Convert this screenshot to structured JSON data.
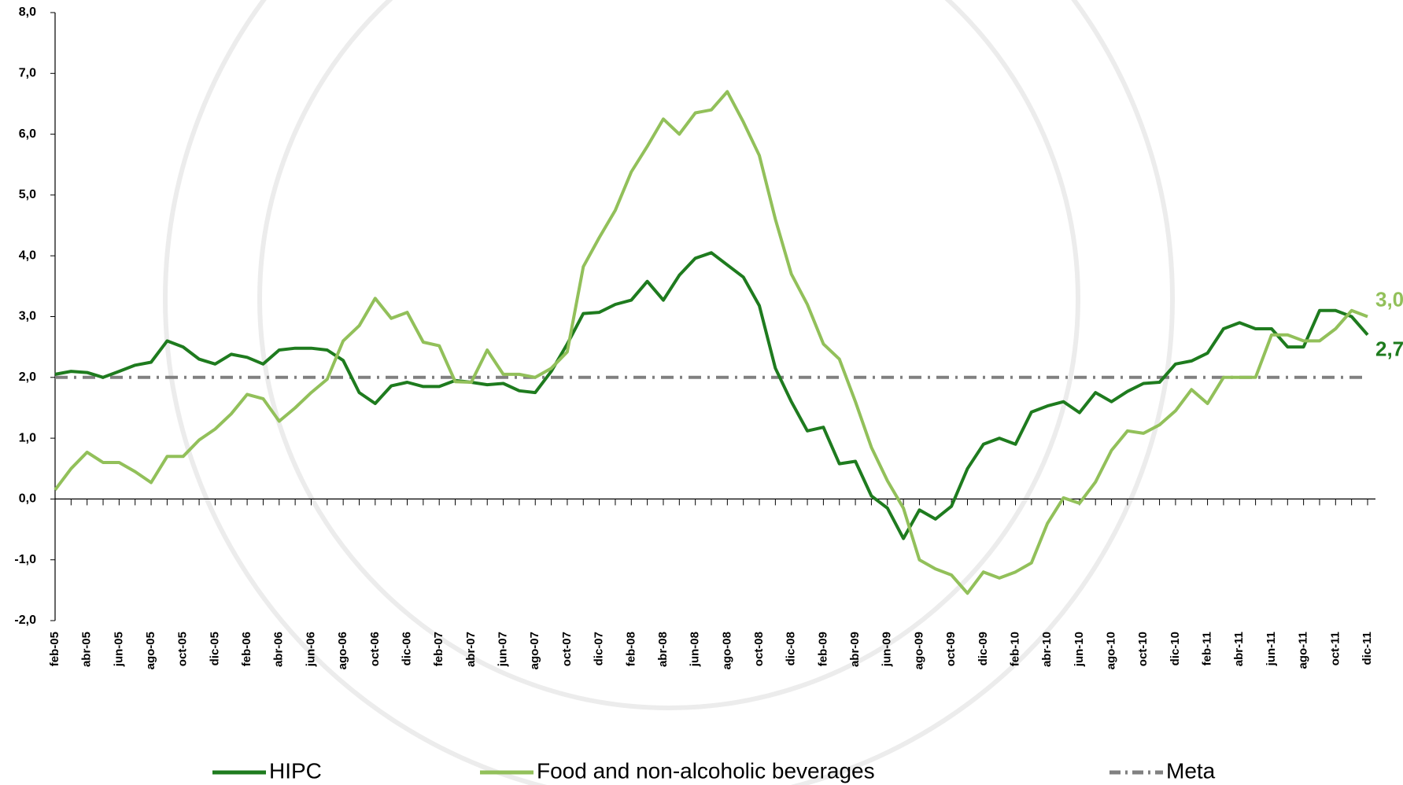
{
  "chart_data": {
    "type": "line",
    "categories": [
      "feb-05",
      null,
      "abr-05",
      null,
      "jun-05",
      null,
      "ago-05",
      null,
      "oct-05",
      null,
      "dic-05",
      null,
      "feb-06",
      null,
      "abr-06",
      null,
      "jun-06",
      null,
      "ago-06",
      null,
      "oct-06",
      null,
      "dic-06",
      null,
      "feb-07",
      null,
      "abr-07",
      null,
      "jun-07",
      null,
      "ago-07",
      null,
      "oct-07",
      null,
      "dic-07",
      null,
      "feb-08",
      null,
      "abr-08",
      null,
      "jun-08",
      null,
      "ago-08",
      null,
      "oct-08",
      null,
      "dic-08",
      null,
      "feb-09",
      null,
      "abr-09",
      null,
      "jun-09",
      null,
      "ago-09",
      null,
      "oct-09",
      null,
      "dic-09",
      null,
      "feb-10",
      null,
      "abr-10",
      null,
      "jun-10",
      null,
      "ago-10",
      null,
      "oct-10",
      null,
      "dic-10",
      null,
      "feb-11",
      null,
      "abr-11",
      null,
      "jun-11",
      null,
      "ago-11",
      null,
      "oct-11",
      null,
      "dic-11"
    ],
    "series": [
      {
        "name": "HIPC",
        "color": "#1e7b1e",
        "values": [
          2.05,
          2.1,
          2.08,
          2.0,
          2.1,
          2.2,
          2.25,
          2.6,
          2.5,
          2.3,
          2.22,
          2.38,
          2.33,
          2.22,
          2.45,
          2.48,
          2.48,
          2.45,
          2.28,
          1.75,
          1.57,
          1.86,
          1.92,
          1.85,
          1.85,
          1.95,
          1.92,
          1.88,
          1.9,
          1.78,
          1.75,
          2.1,
          2.55,
          3.05,
          3.07,
          3.2,
          3.27,
          3.58,
          3.27,
          3.68,
          3.96,
          4.05,
          3.85,
          3.65,
          3.18,
          2.15,
          1.6,
          1.12,
          1.18,
          0.58,
          0.62,
          0.05,
          -0.15,
          -0.65,
          -0.18,
          -0.33,
          -0.12,
          0.5,
          0.9,
          1.0,
          0.9,
          1.43,
          1.53,
          1.6,
          1.42,
          1.75,
          1.6,
          1.77,
          1.9,
          1.92,
          2.22,
          2.27,
          2.4,
          2.8,
          2.9,
          2.8,
          2.8,
          2.5,
          2.5,
          3.1,
          3.1,
          3.0,
          2.7
        ],
        "value_labels": [
          null,
          null,
          null,
          null,
          null,
          null,
          null,
          null,
          null,
          null,
          null,
          null,
          null,
          null,
          null,
          null,
          null,
          null,
          null,
          null,
          null,
          null,
          null,
          null,
          null,
          null,
          null,
          null,
          null,
          null,
          null,
          null,
          null,
          null,
          null,
          null,
          null,
          null,
          null,
          null,
          null,
          null,
          null,
          null,
          null,
          null,
          null,
          null,
          null,
          null,
          null,
          null,
          null,
          null,
          null,
          null,
          null,
          null,
          null,
          null,
          null,
          null,
          null,
          null,
          null,
          null,
          null,
          null,
          null,
          null,
          null,
          null,
          null,
          null,
          null,
          null,
          null,
          null,
          null,
          null,
          null,
          null,
          "2,7"
        ]
      },
      {
        "name": "Food and non-alcoholic beverages",
        "color": "#92c05a",
        "values": [
          0.15,
          0.5,
          0.77,
          0.6,
          0.6,
          0.45,
          0.27,
          0.7,
          0.7,
          0.97,
          1.15,
          1.4,
          1.72,
          1.65,
          1.28,
          1.5,
          1.75,
          1.97,
          2.6,
          2.85,
          3.3,
          2.97,
          3.07,
          2.58,
          2.52,
          1.93,
          1.92,
          2.45,
          2.05,
          2.05,
          2.0,
          2.15,
          2.42,
          3.82,
          4.3,
          4.75,
          5.38,
          5.8,
          6.25,
          6.0,
          6.35,
          6.4,
          6.7,
          6.2,
          5.65,
          4.6,
          3.7,
          3.2,
          2.55,
          2.3,
          1.6,
          0.85,
          0.3,
          -0.15,
          -1.0,
          -1.15,
          -1.25,
          -1.55,
          -1.2,
          -1.3,
          -1.2,
          -1.05,
          -0.4,
          0.02,
          -0.07,
          0.28,
          0.8,
          1.12,
          1.08,
          1.22,
          1.45,
          1.8,
          1.57,
          2.0,
          2.0,
          2.0,
          2.7,
          2.7,
          2.6,
          2.6,
          2.8,
          3.1,
          3.0
        ],
        "value_labels": [
          null,
          null,
          null,
          null,
          null,
          null,
          null,
          null,
          null,
          null,
          null,
          null,
          null,
          null,
          null,
          null,
          null,
          null,
          null,
          null,
          null,
          null,
          null,
          null,
          null,
          null,
          null,
          null,
          null,
          null,
          null,
          null,
          null,
          null,
          null,
          null,
          null,
          null,
          null,
          null,
          null,
          null,
          null,
          null,
          null,
          null,
          null,
          null,
          null,
          null,
          null,
          null,
          null,
          null,
          null,
          null,
          null,
          null,
          null,
          null,
          null,
          null,
          null,
          null,
          null,
          null,
          null,
          null,
          null,
          null,
          null,
          null,
          null,
          null,
          null,
          null,
          null,
          null,
          null,
          null,
          null,
          null,
          "3,0"
        ]
      }
    ],
    "reference_line": {
      "name": "Meta",
      "value": 2,
      "color": "#808080"
    },
    "ylim": [
      -2,
      8
    ],
    "yticks": [
      {
        "value": -2,
        "label": "-2,0"
      },
      {
        "value": -1,
        "label": "-1,0"
      },
      {
        "value": 0,
        "label": "0,0"
      },
      {
        "value": 1,
        "label": "1,0"
      },
      {
        "value": 2,
        "label": "2,0"
      },
      {
        "value": 3,
        "label": "3,0"
      },
      {
        "value": 4,
        "label": "4,0"
      },
      {
        "value": 5,
        "label": "5,0"
      },
      {
        "value": 6,
        "label": "6,0"
      },
      {
        "value": 7,
        "label": "7,0"
      },
      {
        "value": 8,
        "label": "8,0"
      }
    ],
    "grid": false,
    "legend": "bottom"
  }
}
